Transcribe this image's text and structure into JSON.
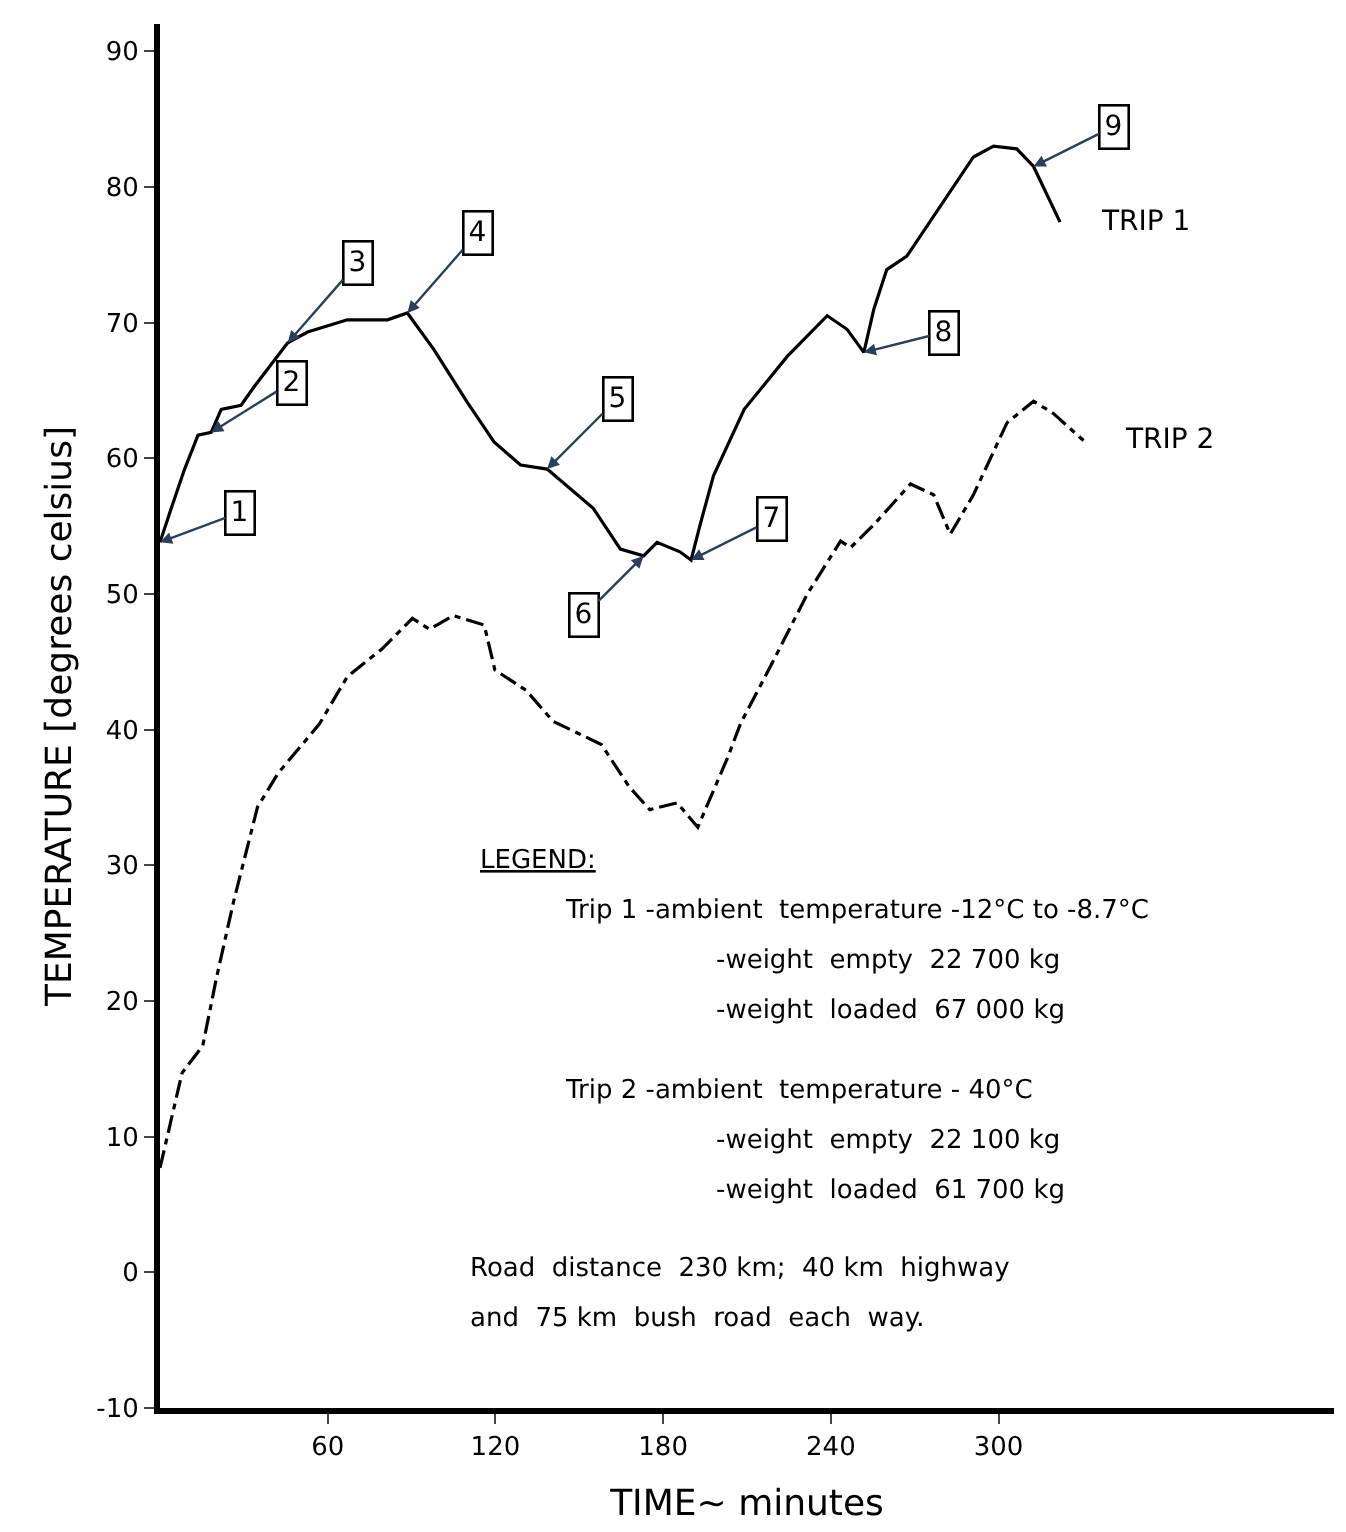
{
  "chart_data": {
    "type": "line",
    "xlabel": "TIME~ minutes",
    "ylabel": "TEMPERATURE [degrees celsius]",
    "xlim": [
      0,
      420
    ],
    "xticks": [
      60,
      120,
      180,
      240,
      300
    ],
    "ylim": [
      -10,
      92
    ],
    "yticks": [
      -10,
      0,
      10,
      20,
      30,
      40,
      50,
      60,
      70,
      80,
      90
    ],
    "grid": false,
    "legend": false,
    "marker": "none",
    "series": [
      {
        "name": "TRIP 1",
        "color": "#000000",
        "line_style": "solid",
        "x": [
          0,
          4,
          8.8,
          13.6,
          18.3,
          21.9,
          29,
          33.8,
          45.7,
          52.8,
          67,
          81.4,
          88.5,
          98,
          110,
          119.5,
          129,
          138.5,
          155,
          164.7,
          173,
          177.8,
          186,
          190,
          193.5,
          198,
          209,
          224.4,
          238.7,
          245.8,
          251.8,
          255.4,
          260,
          267.2,
          291,
          298.2,
          306.5,
          312.5,
          322
        ],
        "values": [
          53.8,
          56.3,
          59.2,
          61.7,
          61.9,
          63.6,
          63.9,
          65.3,
          68.5,
          69.3,
          70.2,
          70.2,
          70.7,
          68,
          64.1,
          61.2,
          59.5,
          59.2,
          56.3,
          53.3,
          52.8,
          53.8,
          53.1,
          52.5,
          55.3,
          58.7,
          63.6,
          67.5,
          70.5,
          69.5,
          67.8,
          71,
          73.9,
          74.9,
          82.2,
          83,
          82.8,
          81.5,
          77.4
        ]
      },
      {
        "name": "TRIP 2",
        "color": "#000000",
        "line_style": "dashed",
        "x": [
          0,
          7.9,
          15.3,
          20.2,
          26.3,
          34.9,
          42.3,
          57,
          67,
          79.2,
          90.3,
          96.4,
          105,
          116,
          119.8,
          130.9,
          140.7,
          157.9,
          167.8,
          175.2,
          185,
          192.4,
          203,
          207.8,
          218.5,
          231.6,
          243.5,
          247,
          255.4,
          268.5,
          276.8,
          282.7,
          291,
          303,
          312.5,
          319.6,
          330.4
        ],
        "values": [
          7.7,
          14.7,
          16.7,
          21.7,
          27.3,
          34.3,
          36.8,
          40.4,
          43.9,
          45.9,
          48.2,
          47.4,
          48.4,
          47.7,
          44.4,
          42.9,
          40.6,
          38.9,
          35.8,
          34.1,
          34.6,
          32.8,
          37.9,
          40.5,
          44.7,
          50,
          53.9,
          53.4,
          55.1,
          58.1,
          57.3,
          54.4,
          57.3,
          62.6,
          64.2,
          63.3,
          61.3
        ]
      }
    ],
    "annotations": [
      {
        "text": "1",
        "x": 0,
        "y": 53.8
      },
      {
        "text": "2",
        "x": 18.3,
        "y": 61.9
      },
      {
        "text": "3",
        "x": 45.7,
        "y": 68.5
      },
      {
        "text": "4",
        "x": 88.5,
        "y": 70.7
      },
      {
        "text": "5",
        "x": 138.5,
        "y": 59.2
      },
      {
        "text": "6",
        "x": 173,
        "y": 52.8
      },
      {
        "text": "7",
        "x": 190,
        "y": 52.5
      },
      {
        "text": "8",
        "x": 251.8,
        "y": 67.8
      },
      {
        "text": "9",
        "x": 312.5,
        "y": 81.5
      },
      "LEGEND:",
      "Trip 1 -ambient  temperature -12°C to -8.7°C",
      "-weight  empty  22 700 kg",
      "-weight  loaded  67 000 kg",
      "Trip 2 -ambient  temperature - 40°C",
      "-weight  empty  22 100 kg",
      "-weight  loaded  61 700 kg",
      "Road  distance  230 km;  40 km  highway",
      "and  75 km  bush  road  each  way."
    ]
  }
}
